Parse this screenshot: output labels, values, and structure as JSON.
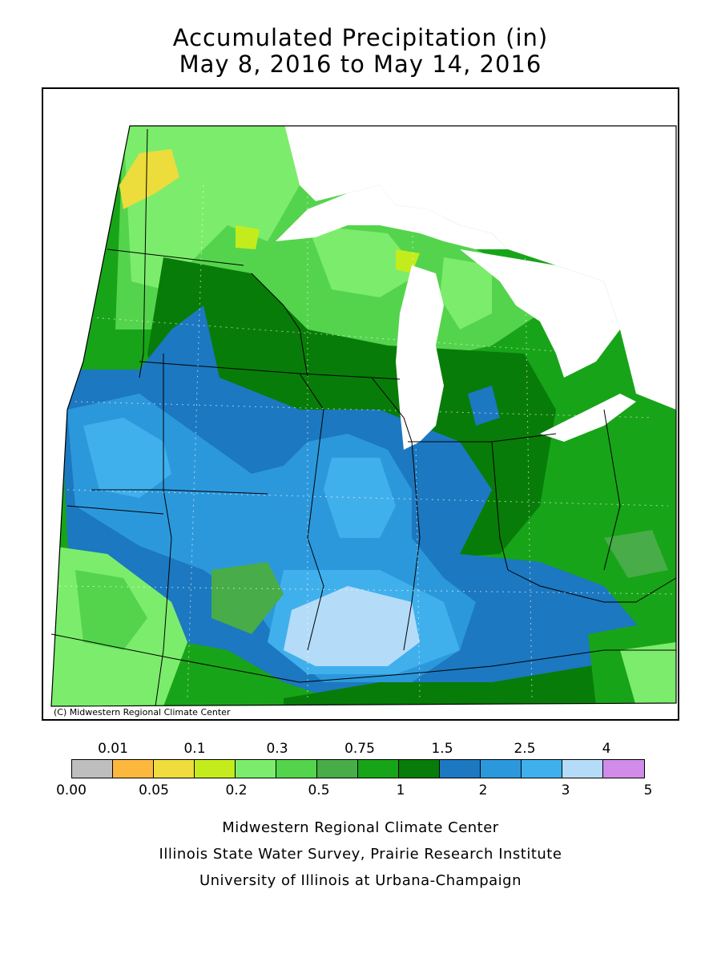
{
  "title": {
    "line1": "Accumulated Precipitation (in)",
    "line2": "May 8, 2016 to May 14, 2016"
  },
  "map": {
    "copyright": "(C) Midwestern Regional Climate Center",
    "region_colors": {
      "light_green": "#7cec6c",
      "med_green": "#54d44c",
      "mid_green": "#48ac48",
      "green": "#18a418",
      "dark_green": "#087c08",
      "blue_dark": "#1c78c0",
      "blue_mid": "#2c98dc",
      "blue_light": "#40b0ec",
      "blue_pale": "#b4dcf8",
      "yellow_green": "#c4ec1c",
      "yellow": "#ecdc3c",
      "lake": "#ffffff"
    }
  },
  "legend": {
    "top_labels": [
      "0.01",
      "0.1",
      "0.3",
      "0.75",
      "1.5",
      "2.5",
      "4"
    ],
    "bottom_labels": [
      "0.00",
      "0.05",
      "0.2",
      "0.5",
      "1",
      "2",
      "3",
      "5"
    ],
    "colors": [
      "#bebebe",
      "#fbb83c",
      "#f0dc3c",
      "#c4ec1c",
      "#7cec6c",
      "#54d44c",
      "#48ac48",
      "#18a418",
      "#087c08",
      "#1c78c0",
      "#2c98dc",
      "#40b0ec",
      "#b4dcf8",
      "#d08ce8"
    ]
  },
  "credits": [
    "Midwestern Regional Climate Center",
    "Illinois State Water Survey, Prairie Research Institute",
    "University of Illinois at Urbana-Champaign"
  ]
}
